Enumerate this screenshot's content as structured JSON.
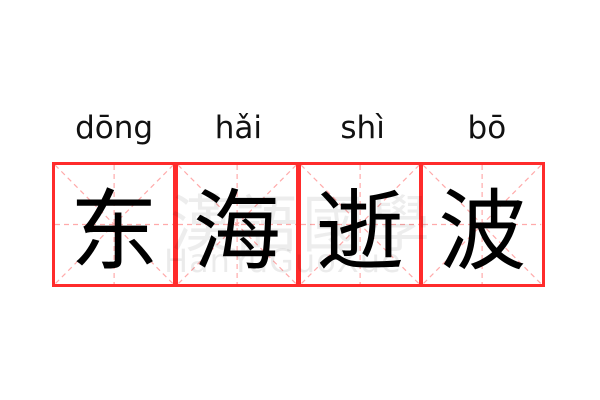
{
  "word": [
    {
      "pinyin": "dōng",
      "hanzi": "东"
    },
    {
      "pinyin": "hǎi",
      "hanzi": "海"
    },
    {
      "pinyin": "shì",
      "hanzi": "逝"
    },
    {
      "pinyin": "bō",
      "hanzi": "波"
    }
  ],
  "watermark": {
    "chars": "漢語國學",
    "latin": "HanYuGuoXue"
  },
  "colors": {
    "border": "#ff2b2b",
    "guide": "#ffaaaa",
    "text": "#000000"
  }
}
